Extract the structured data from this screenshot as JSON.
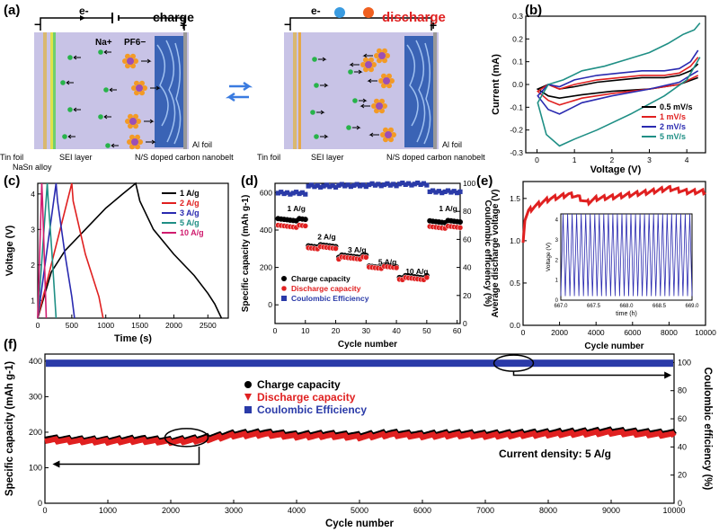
{
  "panel_labels": {
    "a": "(a)",
    "b": "(b)",
    "c": "(c)",
    "d": "(d)",
    "e": "(e)",
    "f": "(f)"
  },
  "schematic": {
    "charge_title": "charge",
    "discharge_title": "discharge",
    "electron": "e-",
    "minus": "−",
    "plus": "+",
    "na_label": "Na+",
    "pf6_label": "PF6−",
    "left_labels": [
      "Tin foil",
      "NaSn alloy",
      "SEI layer",
      "N/S doped carbon nanobelt",
      "Al foil"
    ],
    "right_labels": [
      "Tin foil",
      "SEI layer",
      "N/S doped carbon nanobelt",
      "Al foil"
    ],
    "colors": {
      "electrolyte": "#c8c3e6",
      "nanobelt": "#3a63b5",
      "na_ion": "#27b34a",
      "pf6_core": "#9b4fb5",
      "pf6_f": "#f39a25",
      "tin": "#d9b870",
      "accent_red": "#e02020"
    }
  },
  "chart_data": [
    {
      "id": "b",
      "type": "line",
      "xlabel": "Voltage (V)",
      "ylabel": "Current (mA)",
      "xlim": [
        -0.3,
        4.5
      ],
      "ylim": [
        -0.3,
        0.3
      ],
      "xticks": [
        0,
        1,
        2,
        3,
        4
      ],
      "yticks": [
        -0.3,
        -0.2,
        -0.1,
        0.0,
        0.1,
        0.2,
        0.3
      ],
      "legend_position": "bottom-right",
      "series": [
        {
          "name": "0.5 mV/s",
          "color": "#000000",
          "x": [
            4.3,
            3.8,
            3.0,
            2.0,
            1.2,
            0.6,
            0.3,
            0.02,
            0.3,
            0.6,
            1.0,
            1.6,
            2.2,
            2.8,
            3.4,
            3.8,
            4.1,
            4.3
          ],
          "y": [
            0.03,
            0.0,
            -0.02,
            -0.03,
            -0.045,
            -0.06,
            -0.05,
            -0.02,
            0.0,
            -0.02,
            -0.01,
            0.01,
            0.02,
            0.03,
            0.03,
            0.04,
            0.06,
            0.09
          ]
        },
        {
          "name": "1 mV/s",
          "color": "#e02020",
          "x": [
            4.3,
            3.8,
            3.0,
            2.0,
            1.2,
            0.6,
            0.3,
            0.02,
            0.3,
            0.6,
            1.0,
            1.6,
            2.2,
            2.8,
            3.4,
            3.8,
            4.1,
            4.3
          ],
          "y": [
            0.04,
            0.0,
            -0.02,
            -0.04,
            -0.06,
            -0.09,
            -0.07,
            -0.03,
            0.0,
            -0.02,
            0.0,
            0.02,
            0.03,
            0.04,
            0.04,
            0.05,
            0.08,
            0.12
          ]
        },
        {
          "name": "2 mV/s",
          "color": "#2a2ab0",
          "x": [
            4.3,
            3.8,
            3.0,
            2.0,
            1.2,
            0.6,
            0.3,
            0.02,
            0.3,
            0.6,
            1.0,
            1.6,
            2.2,
            2.8,
            3.4,
            3.8,
            4.1,
            4.3
          ],
          "y": [
            0.06,
            0.01,
            -0.02,
            -0.05,
            -0.08,
            -0.13,
            -0.11,
            -0.05,
            0.0,
            -0.01,
            0.02,
            0.04,
            0.05,
            0.06,
            0.06,
            0.07,
            0.1,
            0.15
          ]
        },
        {
          "name": "5 mV/s",
          "color": "#1f8f85",
          "x": [
            4.35,
            4.0,
            3.4,
            2.5,
            1.6,
            1.0,
            0.6,
            0.25,
            0.02,
            0.3,
            0.7,
            1.2,
            1.8,
            2.4,
            3.0,
            3.5,
            3.9,
            4.2,
            4.35
          ],
          "y": [
            0.12,
            0.02,
            -0.05,
            -0.13,
            -0.2,
            -0.24,
            -0.27,
            -0.22,
            -0.08,
            0.0,
            0.02,
            0.06,
            0.08,
            0.11,
            0.14,
            0.18,
            0.22,
            0.24,
            0.27
          ]
        }
      ]
    },
    {
      "id": "c",
      "type": "line",
      "xlabel": "Time (s)",
      "ylabel": "Voltage (V)",
      "xlim": [
        0,
        2800
      ],
      "ylim": [
        0.5,
        4.3
      ],
      "xticks": [
        0,
        500,
        1000,
        1500,
        2000,
        2500
      ],
      "yticks": [
        1,
        2,
        3,
        4
      ],
      "legend_position": "top-right",
      "series": [
        {
          "name": "1 A/g",
          "color": "#000000",
          "x": [
            0,
            200,
            400,
            700,
            1000,
            1250,
            1440,
            1500,
            1700,
            2000,
            2300,
            2500,
            2600,
            2700
          ],
          "y": [
            0.5,
            1.8,
            2.4,
            3.0,
            3.6,
            4.0,
            4.3,
            3.8,
            3.0,
            2.3,
            1.7,
            1.2,
            0.9,
            0.5
          ]
        },
        {
          "name": "2 A/g",
          "color": "#e02020",
          "x": [
            0,
            500,
            520,
            700,
            900,
            960
          ],
          "y": [
            0.5,
            4.3,
            3.8,
            2.3,
            1.1,
            0.5
          ]
        },
        {
          "name": "3 A/g",
          "color": "#2a2ab0",
          "x": [
            0,
            270,
            290,
            400,
            500,
            540
          ],
          "y": [
            0.5,
            4.3,
            3.8,
            2.3,
            1.1,
            0.5
          ]
        },
        {
          "name": "5 A/g",
          "color": "#1f8f85",
          "x": [
            0,
            140,
            155,
            210,
            250,
            270
          ],
          "y": [
            0.5,
            4.3,
            3.8,
            2.3,
            1.1,
            0.5
          ]
        },
        {
          "name": "10 A/g",
          "color": "#d01c6e",
          "x": [
            0,
            60,
            70,
            95,
            115,
            125
          ],
          "y": [
            0.5,
            4.3,
            3.8,
            2.3,
            1.1,
            0.5
          ]
        }
      ]
    },
    {
      "id": "d",
      "type": "scatter",
      "xlabel": "Cycle number",
      "ylabel": "Specific capacity (mAh g-1)",
      "y2label": "Coulombic efficiency (%)",
      "xlim": [
        0,
        61
      ],
      "ylim": [
        -100,
        650
      ],
      "y2lim": [
        0,
        100
      ],
      "xticks": [
        0,
        10,
        20,
        30,
        40,
        50,
        60
      ],
      "yticks": [
        0,
        200,
        400,
        600
      ],
      "y2ticks": [
        0,
        20,
        40,
        60,
        80,
        100
      ],
      "rate_labels": [
        {
          "text": "1 A/g",
          "x": 4,
          "y": 500
        },
        {
          "text": "2 A/g",
          "x": 14,
          "y": 350
        },
        {
          "text": "3 A/g",
          "x": 24,
          "y": 280
        },
        {
          "text": "5 A/g",
          "x": 34,
          "y": 215
        },
        {
          "text": "10 A/g",
          "x": 43,
          "y": 165
        },
        {
          "text": "1 A/g",
          "x": 54,
          "y": 500
        }
      ],
      "legend_position": "bottom-left",
      "series": [
        {
          "name": "Charge capacity",
          "color": "#000000",
          "marker": "circle",
          "axis": "left",
          "segments": [
            [
              1,
              10,
              455
            ],
            [
              11,
              20,
              315
            ],
            [
              21,
              30,
              260
            ],
            [
              31,
              40,
              205
            ],
            [
              41,
              50,
              150
            ],
            [
              51,
              61,
              445
            ]
          ]
        },
        {
          "name": "Discharge capacity",
          "color": "#e02020",
          "marker": "circle",
          "axis": "left",
          "segments": [
            [
              1,
              10,
              420
            ],
            [
              11,
              20,
              305
            ],
            [
              21,
              30,
              250
            ],
            [
              31,
              40,
              200
            ],
            [
              41,
              50,
              140
            ],
            [
              51,
              61,
              415
            ]
          ]
        },
        {
          "name": "Coulombic Efficiency",
          "color": "#2a3aa8",
          "marker": "square",
          "axis": "right",
          "segments": [
            [
              1,
              10,
              93
            ],
            [
              11,
              20,
              98
            ],
            [
              21,
              30,
              98.5
            ],
            [
              31,
              40,
              99
            ],
            [
              41,
              50,
              99.5
            ],
            [
              51,
              61,
              94
            ]
          ]
        }
      ]
    },
    {
      "id": "e",
      "type": "line",
      "xlabel": "Cycle number",
      "ylabel": "Average discharge voltage (V)",
      "xlim": [
        0,
        10000
      ],
      "ylim": [
        0,
        1.7
      ],
      "xticks": [
        0,
        2000,
        4000,
        6000,
        8000,
        10000
      ],
      "yticks": [
        0.0,
        0.5,
        1.0,
        1.5
      ],
      "series": [
        {
          "name": "",
          "color": "#e02020",
          "x": [
            0,
            100,
            300,
            600,
            1000,
            1500,
            2000,
            2500,
            3000,
            3500,
            4000,
            5000,
            6000,
            7000,
            8000,
            9000,
            10000
          ],
          "y": [
            1.0,
            1.25,
            1.35,
            1.4,
            1.45,
            1.5,
            1.52,
            1.55,
            1.52,
            1.45,
            1.5,
            1.52,
            1.55,
            1.58,
            1.62,
            1.58,
            1.58
          ]
        }
      ],
      "inset": {
        "xlabel": "time (h)",
        "ylabel": "Voltage (V)",
        "xlim": [
          667.0,
          669.0
        ],
        "ylim": [
          0,
          4.3
        ],
        "xticks": [
          667.0,
          667.5,
          668.0,
          668.5,
          669.0
        ],
        "yticks": [
          0,
          1,
          2,
          3,
          4
        ],
        "cycles": 29,
        "vmin": 0.2,
        "vmax": 4.3,
        "color": "#2a2ab0"
      }
    },
    {
      "id": "f",
      "type": "scatter",
      "xlabel": "Cycle number",
      "ylabel": "Specific capacity (mAh g-1)",
      "y2label": "Coulombic efficiency (%)",
      "xlim": [
        0,
        10000
      ],
      "ylim": [
        0,
        420
      ],
      "y2lim": [
        0,
        106
      ],
      "xticks": [
        0,
        1000,
        2000,
        3000,
        4000,
        5000,
        6000,
        7000,
        8000,
        9000,
        10000
      ],
      "yticks": [
        0,
        100,
        200,
        300,
        400
      ],
      "y2ticks": [
        0,
        20,
        40,
        60,
        80,
        100
      ],
      "annotation": "Current density: 5 A/g",
      "legend_position": "center",
      "series": [
        {
          "name": "Charge capacity",
          "color": "#000000",
          "marker": "circle",
          "axis": "left",
          "x": [
            0,
            500,
            1000,
            1500,
            2000,
            2500,
            3000,
            3500,
            4000,
            4500,
            5000,
            5500,
            6000,
            6500,
            7000,
            7500,
            8000,
            8500,
            9000,
            9500,
            10000
          ],
          "y": [
            182,
            178,
            177,
            180,
            176,
            182,
            195,
            198,
            192,
            194,
            190,
            197,
            193,
            196,
            194,
            196,
            198,
            200,
            203,
            199,
            196
          ]
        },
        {
          "name": "Discharge capacity",
          "color": "#e02020",
          "marker": "triangle",
          "axis": "left",
          "x": [
            0,
            500,
            1000,
            1500,
            2000,
            2500,
            3000,
            3500,
            4000,
            4500,
            5000,
            5500,
            6000,
            6500,
            7000,
            7500,
            8000,
            8500,
            9000,
            9500,
            10000
          ],
          "y": [
            178,
            175,
            174,
            176,
            173,
            178,
            191,
            194,
            188,
            190,
            186,
            193,
            189,
            192,
            190,
            192,
            194,
            196,
            199,
            195,
            192
          ]
        },
        {
          "name": "Coulombic Efficiency",
          "color": "#2a3aa8",
          "marker": "square",
          "axis": "right",
          "x": [
            0,
            10000
          ],
          "y": [
            99.5,
            99.5
          ]
        }
      ]
    }
  ]
}
